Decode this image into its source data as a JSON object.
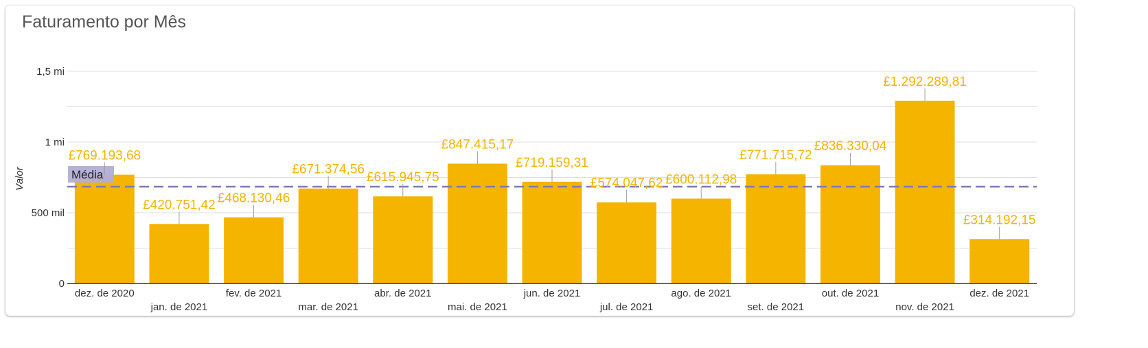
{
  "card": {
    "title": "Faturamento por Mês"
  },
  "chart_data": {
    "type": "bar",
    "title": "Faturamento por Mês",
    "xlabel": "",
    "ylabel": "Valor",
    "ylim": [
      0,
      1500000
    ],
    "yticks": [
      {
        "value": 0,
        "label": "0"
      },
      {
        "value": 500000,
        "label": "500 mil"
      },
      {
        "value": 1000000,
        "label": "1 mi"
      },
      {
        "value": 1500000,
        "label": "1,5 mi"
      }
    ],
    "grid": true,
    "categories": [
      "dez. de 2020",
      "jan. de 2021",
      "fev. de 2021",
      "mar. de 2021",
      "abr. de 2021",
      "mai. de 2021",
      "jun. de 2021",
      "jul. de 2021",
      "ago. de 2021",
      "set. de 2021",
      "out. de 2021",
      "nov. de 2021",
      "dez. de 2021"
    ],
    "values": [
      769193.68,
      420751.42,
      468130.46,
      671374.56,
      615945.75,
      847415.17,
      719159.31,
      574047.62,
      600112.98,
      771715.72,
      836330.04,
      1292289.81,
      314192.15
    ],
    "data_labels": [
      "£769.193,68",
      "£420.751,42",
      "£468.130,46",
      "£671.374,56",
      "£615.945,75",
      "£847.415,17",
      "£719.159,31",
      "£574.047,62",
      "£600.112,98",
      "£771.715,72",
      "£836.330,04",
      "£1.292.289,81",
      "£314.192,15"
    ],
    "bar_color": "#f4b400",
    "reference_line": {
      "label": "Média",
      "value": 684650,
      "color": "#7d78b8"
    }
  }
}
